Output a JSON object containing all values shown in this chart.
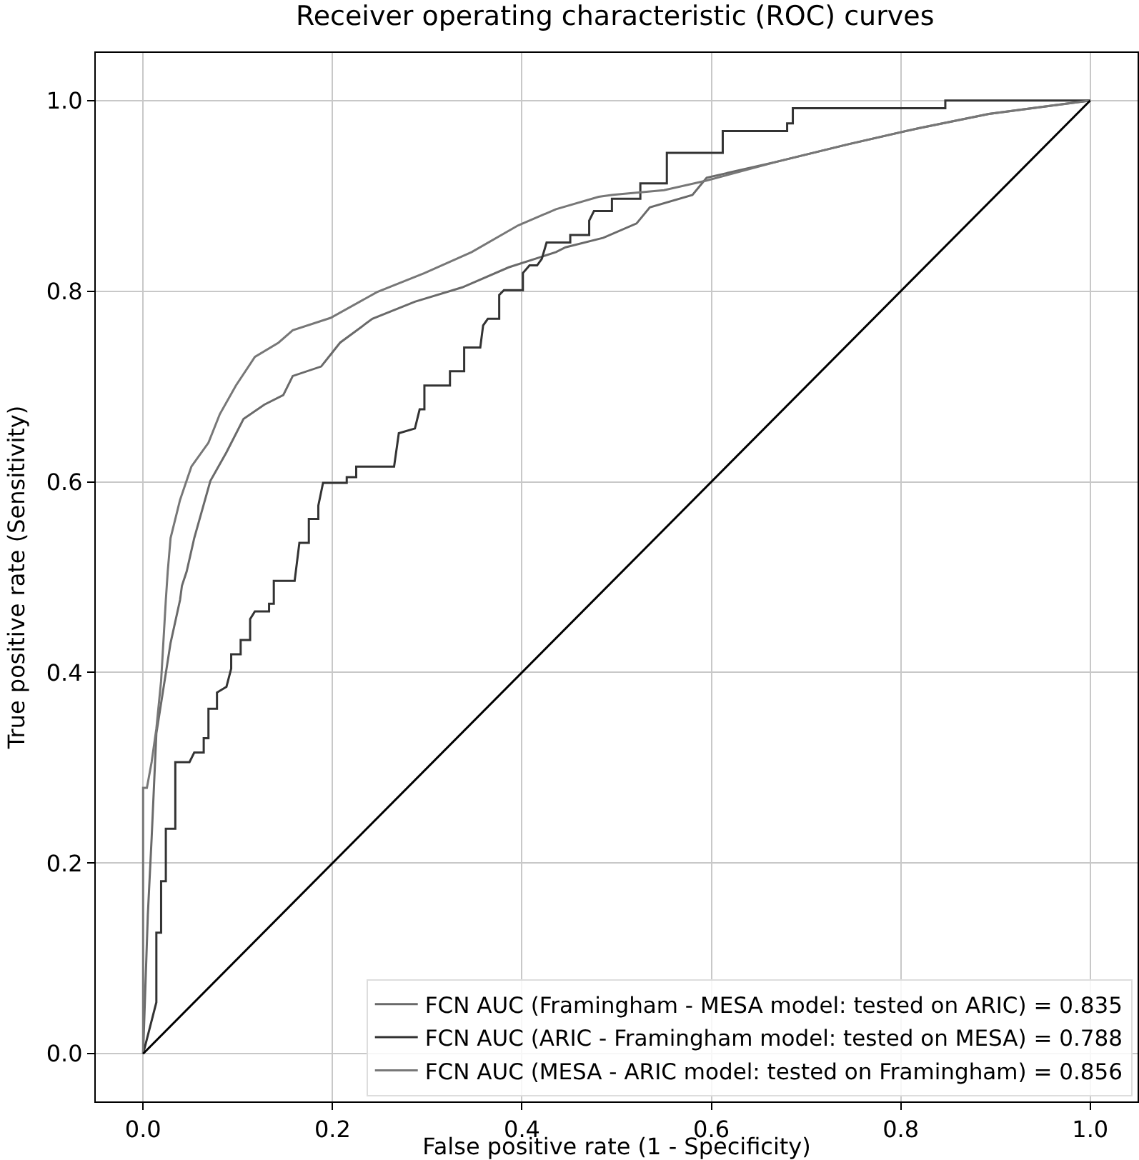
{
  "chart_data": {
    "type": "line",
    "title": "Receiver operating characteristic (ROC) curves",
    "xlabel": "False positive rate (1 - Specificity)",
    "ylabel": "True positive rate (Sensitivity)",
    "series": [
      {
        "name": "FCN AUC (Framingham - MESA model: tested on ARIC) = 0.835",
        "color": "#6a6a6a",
        "x": [
          0,
          0.005,
          0.009,
          0.014,
          0.029,
          0.039,
          0.041,
          0.046,
          0.054,
          0.071,
          0.088,
          0.106,
          0.128,
          0.148,
          0.158,
          0.188,
          0.208,
          0.242,
          0.287,
          0.337,
          0.386,
          0.436,
          0.446,
          0.486,
          0.521,
          0.535,
          0.58,
          0.595,
          0.67,
          0.744,
          0.819,
          0.893,
          1
        ],
        "values": [
          0,
          0.146,
          0.226,
          0.336,
          0.431,
          0.476,
          0.491,
          0.506,
          0.541,
          0.601,
          0.631,
          0.666,
          0.681,
          0.691,
          0.711,
          0.721,
          0.746,
          0.771,
          0.789,
          0.804,
          0.825,
          0.841,
          0.846,
          0.856,
          0.871,
          0.888,
          0.901,
          0.919,
          0.936,
          0.954,
          0.971,
          0.986,
          1
        ]
      },
      {
        "name": "FCN AUC (ARIC - Framingham model: tested on MESA) = 0.788",
        "color": "#333333",
        "x": [
          0,
          0.014,
          0.014,
          0.019,
          0.019,
          0.024,
          0.024,
          0.034,
          0.034,
          0.049,
          0.054,
          0.064,
          0.064,
          0.069,
          0.069,
          0.078,
          0.078,
          0.088,
          0.093,
          0.093,
          0.103,
          0.103,
          0.113,
          0.113,
          0.118,
          0.133,
          0.133,
          0.138,
          0.138,
          0.16,
          0.165,
          0.175,
          0.175,
          0.185,
          0.185,
          0.19,
          0.215,
          0.215,
          0.225,
          0.225,
          0.265,
          0.27,
          0.287,
          0.292,
          0.297,
          0.297,
          0.324,
          0.324,
          0.339,
          0.339,
          0.356,
          0.359,
          0.364,
          0.376,
          0.376,
          0.381,
          0.401,
          0.401,
          0.408,
          0.416,
          0.421,
          0.426,
          0.451,
          0.451,
          0.471,
          0.471,
          0.476,
          0.495,
          0.495,
          0.525,
          0.525,
          0.553,
          0.553,
          0.612,
          0.612,
          0.68,
          0.68,
          0.686,
          0.686,
          0.847,
          0.847,
          1
        ],
        "values": [
          0,
          0.054,
          0.127,
          0.127,
          0.181,
          0.181,
          0.236,
          0.236,
          0.306,
          0.306,
          0.316,
          0.316,
          0.331,
          0.331,
          0.362,
          0.362,
          0.379,
          0.385,
          0.404,
          0.419,
          0.419,
          0.434,
          0.434,
          0.456,
          0.464,
          0.464,
          0.472,
          0.472,
          0.496,
          0.496,
          0.536,
          0.536,
          0.561,
          0.561,
          0.575,
          0.599,
          0.599,
          0.605,
          0.605,
          0.616,
          0.616,
          0.651,
          0.656,
          0.676,
          0.676,
          0.701,
          0.701,
          0.716,
          0.716,
          0.741,
          0.741,
          0.764,
          0.771,
          0.771,
          0.796,
          0.801,
          0.801,
          0.819,
          0.827,
          0.827,
          0.834,
          0.851,
          0.851,
          0.859,
          0.859,
          0.874,
          0.884,
          0.884,
          0.897,
          0.897,
          0.913,
          0.913,
          0.945,
          0.945,
          0.968,
          0.968,
          0.976,
          0.976,
          0.992,
          0.992,
          1,
          1
        ]
      },
      {
        "name": "FCN AUC (MESA - ARIC model: tested on Framingham) = 0.856",
        "color": "#777777",
        "x": [
          0,
          0,
          0.004,
          0.009,
          0.014,
          0.019,
          0.024,
          0.026,
          0.029,
          0.039,
          0.051,
          0.069,
          0.081,
          0.098,
          0.118,
          0.143,
          0.158,
          0.198,
          0.247,
          0.297,
          0.347,
          0.396,
          0.436,
          0.481,
          0.496,
          0.55,
          0.595,
          0.67,
          0.744,
          0.819,
          0.893,
          1
        ],
        "values": [
          0,
          0.279,
          0.279,
          0.306,
          0.341,
          0.391,
          0.476,
          0.506,
          0.541,
          0.581,
          0.616,
          0.641,
          0.671,
          0.701,
          0.731,
          0.746,
          0.759,
          0.772,
          0.799,
          0.819,
          0.841,
          0.869,
          0.886,
          0.899,
          0.901,
          0.906,
          0.916,
          0.936,
          0.954,
          0.971,
          0.986,
          1
        ]
      },
      {
        "color": "#000000",
        "x": [
          0,
          1
        ],
        "values": [
          0,
          1
        ]
      }
    ],
    "xlim": [
      -0.05,
      1.05
    ],
    "ylim": [
      -0.05,
      1.05
    ],
    "xticks": [
      {
        "value": 0,
        "label": "0.0"
      },
      0.2,
      0.4,
      0.6,
      0.8,
      {
        "value": 1,
        "label": "1.0"
      }
    ],
    "yticks": [
      {
        "value": 0,
        "label": "0.0"
      },
      0.2,
      0.4,
      0.6,
      0.8,
      {
        "value": 1,
        "label": "1.0"
      }
    ],
    "grid": true,
    "legend": "bottom right",
    "marker": "none",
    "line_style": "solid"
  }
}
